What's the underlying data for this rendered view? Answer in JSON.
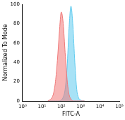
{
  "chart_data": {
    "type": "line",
    "x_label": "FITC-A",
    "y_label": "Normalized To Mode",
    "log": "x",
    "grid": false,
    "xlim": [
      1,
      100000
    ],
    "xticks": [
      {
        "value": 1,
        "label": "10⁰"
      },
      {
        "value": 10,
        "label": "10¹"
      },
      {
        "value": 100,
        "label": "10²"
      },
      {
        "value": 1000,
        "label": "10³"
      },
      {
        "value": 10000,
        "label": "10⁴"
      },
      {
        "value": 100000,
        "label": "10⁵"
      }
    ],
    "ylim": [
      0,
      100
    ],
    "yticks": [
      0,
      20,
      40,
      60,
      80,
      100
    ],
    "x": [
      20,
      25,
      32,
      40,
      50,
      63,
      79,
      100,
      126,
      158,
      200,
      251,
      316,
      398,
      501,
      631,
      794,
      1000,
      1259,
      1585
    ],
    "series": [
      {
        "color": "#f07878",
        "values": [
          0,
          1,
          3,
          8,
          20,
          42,
          70,
          92,
          80,
          50,
          22,
          7,
          2,
          0,
          0,
          0,
          0,
          0,
          0,
          0
        ]
      },
      {
        "color": "#5fcbef",
        "values": [
          0,
          0,
          0,
          0,
          0,
          0,
          0,
          1,
          4,
          12,
          35,
          75,
          98,
          78,
          40,
          12,
          3,
          1,
          0,
          0
        ]
      }
    ]
  }
}
